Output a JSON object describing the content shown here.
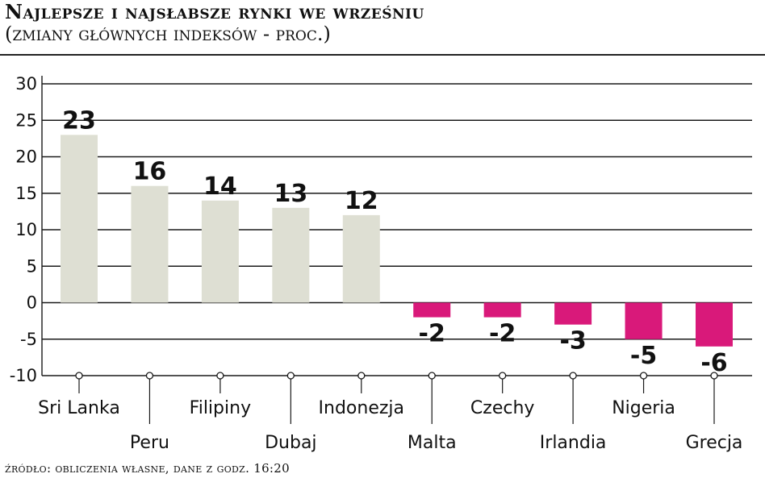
{
  "header": {
    "title": "Najlepsze i najsłabsze rynki we wrześniu",
    "subtitle": "(zmiany głównych indeksów - proc.)"
  },
  "footer": {
    "source": "źródło: obliczenia własne, dane z godz. 16:20"
  },
  "colors": {
    "positive_bar": "#dedfd3",
    "negative_bar": "#d9197a",
    "grid": "#1a1a1a"
  },
  "chart_data": {
    "type": "bar",
    "title": "Najlepsze i najsłabsze rynki we wrześniu",
    "subtitle": "(zmiany głównych indeksów - proc.)",
    "categories": [
      "Sri Lanka",
      "Peru",
      "Filipiny",
      "Dubaj",
      "Indonezja",
      "Malta",
      "Czechy",
      "Irlandia",
      "Nigeria",
      "Grecja"
    ],
    "values": [
      23,
      16,
      14,
      13,
      12,
      -2,
      -2,
      -3,
      -5,
      -6
    ],
    "value_labels": [
      "23",
      "16",
      "14",
      "13",
      "12",
      "-2",
      "-2",
      "-3",
      "-5",
      "-6"
    ],
    "ylim": [
      -10,
      30
    ],
    "yticks": [
      30,
      25,
      20,
      15,
      10,
      5,
      0,
      -5,
      -10
    ],
    "grid": true,
    "legend": "none"
  }
}
